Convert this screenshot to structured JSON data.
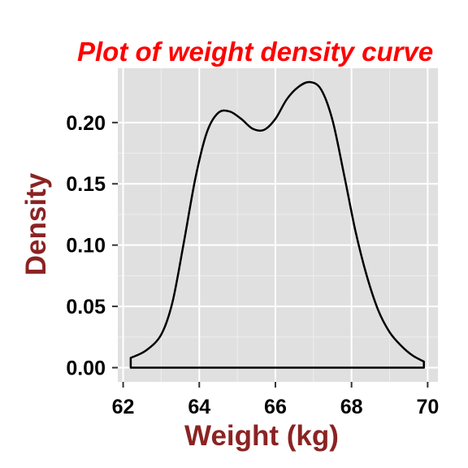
{
  "colors": {
    "panel_background": "#e0e0e0",
    "grid_major": "#ffffff",
    "grid_minor": "#eeeeee",
    "title": "#ff0000",
    "axis_title": "#8b2323",
    "curve": "#000000"
  },
  "chart_data": {
    "type": "area",
    "title": "Plot of weight density curve",
    "xlabel": "Weight (kg)",
    "ylabel": "Density",
    "xlim": [
      61.86,
      70.27
    ],
    "ylim": [
      -0.0116,
      0.2443
    ],
    "x_ticks": [
      62,
      64,
      66,
      68,
      70
    ],
    "x_tick_labels": [
      "62",
      "64",
      "66",
      "68",
      "70"
    ],
    "y_ticks": [
      0,
      0.05,
      0.1,
      0.15,
      0.2
    ],
    "y_tick_labels": [
      "0.00",
      "0.05",
      "0.10",
      "0.15",
      "0.20"
    ],
    "grid": true,
    "fill": false,
    "series": [
      {
        "x": [
          62.2,
          62.6,
          63.0,
          63.3,
          63.6,
          63.9,
          64.2,
          64.5,
          64.8,
          65.1,
          65.4,
          65.7,
          66.0,
          66.3,
          66.6,
          66.9,
          67.2,
          67.5,
          67.8,
          68.1,
          68.4,
          68.7,
          69.0,
          69.3,
          69.6,
          69.9
        ],
        "y": [
          0.008,
          0.014,
          0.027,
          0.054,
          0.103,
          0.155,
          0.192,
          0.208,
          0.209,
          0.203,
          0.195,
          0.194,
          0.203,
          0.219,
          0.229,
          0.233,
          0.227,
          0.202,
          0.158,
          0.112,
          0.075,
          0.047,
          0.029,
          0.018,
          0.01,
          0.005
        ]
      }
    ]
  }
}
